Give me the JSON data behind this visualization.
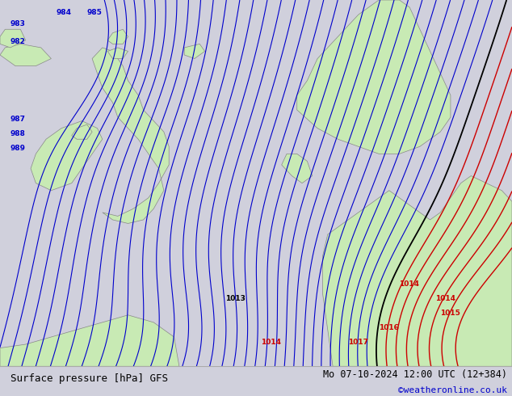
{
  "title_left": "Surface pressure [hPa] GFS",
  "title_right": "Mo 07-10-2024 12:00 UTC (12+384)",
  "credit": "©weatheronline.co.uk",
  "background_color": "#d0d0dc",
  "land_color": "#c8eab4",
  "blue_contour_color": "#0000cc",
  "red_contour_color": "#cc0000",
  "black_contour_color": "#000000",
  "coast_color": "#888888",
  "bottom_bar_color": "#f0f0f0",
  "text_color": "#000000",
  "credit_color": "#0000cc",
  "fig_width": 6.34,
  "fig_height": 4.9,
  "dpi": 100
}
